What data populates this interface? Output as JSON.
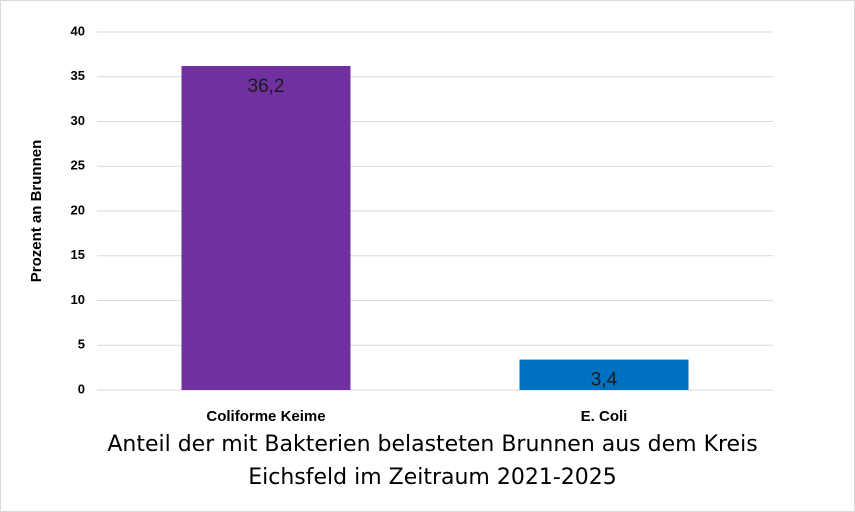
{
  "chart_data": {
    "type": "bar",
    "title": "Anteil der mit Bakterien belasteten Brunnen aus dem Kreis Eichsfeld im Zeitraum 2021-2025",
    "y_label": "Prozent an Brunnen",
    "categories": [
      "Coliforme Keime",
      "E. Coli"
    ],
    "values": [
      36.2,
      3.4
    ],
    "value_labels": [
      "36,2",
      "3,4"
    ],
    "colors": [
      "#7030a0",
      "#0070c0"
    ],
    "ylim": [
      0,
      40
    ],
    "yticks": [
      0,
      5,
      10,
      15,
      20,
      25,
      30,
      35,
      40
    ],
    "grid": true
  }
}
